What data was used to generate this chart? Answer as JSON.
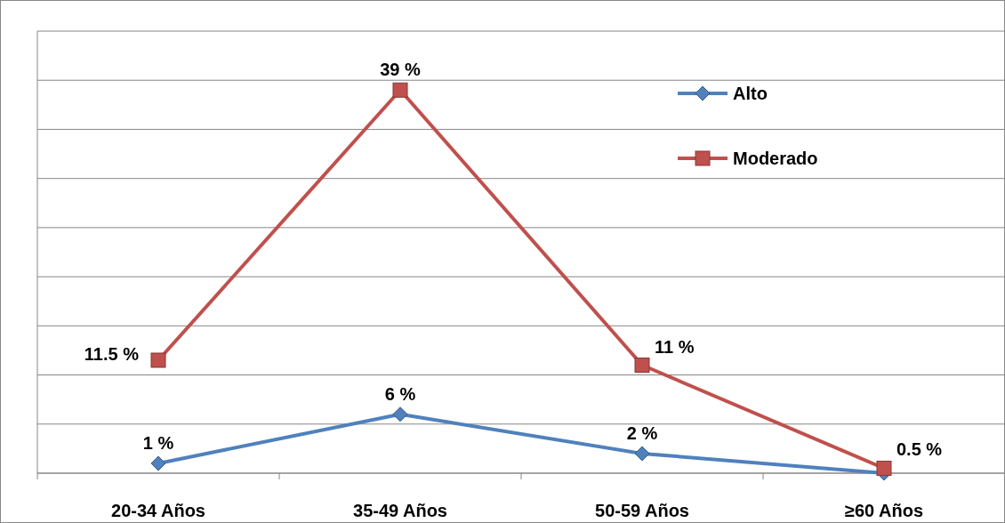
{
  "chart_data": {
    "type": "line",
    "categories": [
      "20-34 Años",
      "35-49 Años",
      "50-59 Años",
      "≥60 Años"
    ],
    "series": [
      {
        "name": "Alto",
        "color": "#4f81bd",
        "marker": "diamond",
        "values": [
          1,
          6,
          2,
          0
        ],
        "value_labels": [
          "1 %",
          "6 %",
          "2 %",
          null
        ]
      },
      {
        "name": "Moderado",
        "color": "#c0504d",
        "marker": "square",
        "values": [
          11.5,
          39,
          11,
          0.5
        ],
        "value_labels": [
          "11.5 %",
          "39 %",
          "11 %",
          "0.5 %"
        ]
      }
    ],
    "ylim": [
      0,
      45
    ],
    "yticks": [
      {
        "value": 0,
        "label": null
      },
      {
        "value": 5,
        "label": null
      },
      {
        "value": 10,
        "label": null
      },
      {
        "value": 15,
        "label": null
      },
      {
        "value": 20,
        "label": null
      },
      {
        "value": 25,
        "label": null
      },
      {
        "value": 30,
        "label": null
      },
      {
        "value": 35,
        "label": null
      },
      {
        "value": 40,
        "label": null
      },
      {
        "value": 45,
        "label": null
      }
    ],
    "grid": "y",
    "tick_labels": "x",
    "legend": "top right",
    "line_style": "solid"
  }
}
